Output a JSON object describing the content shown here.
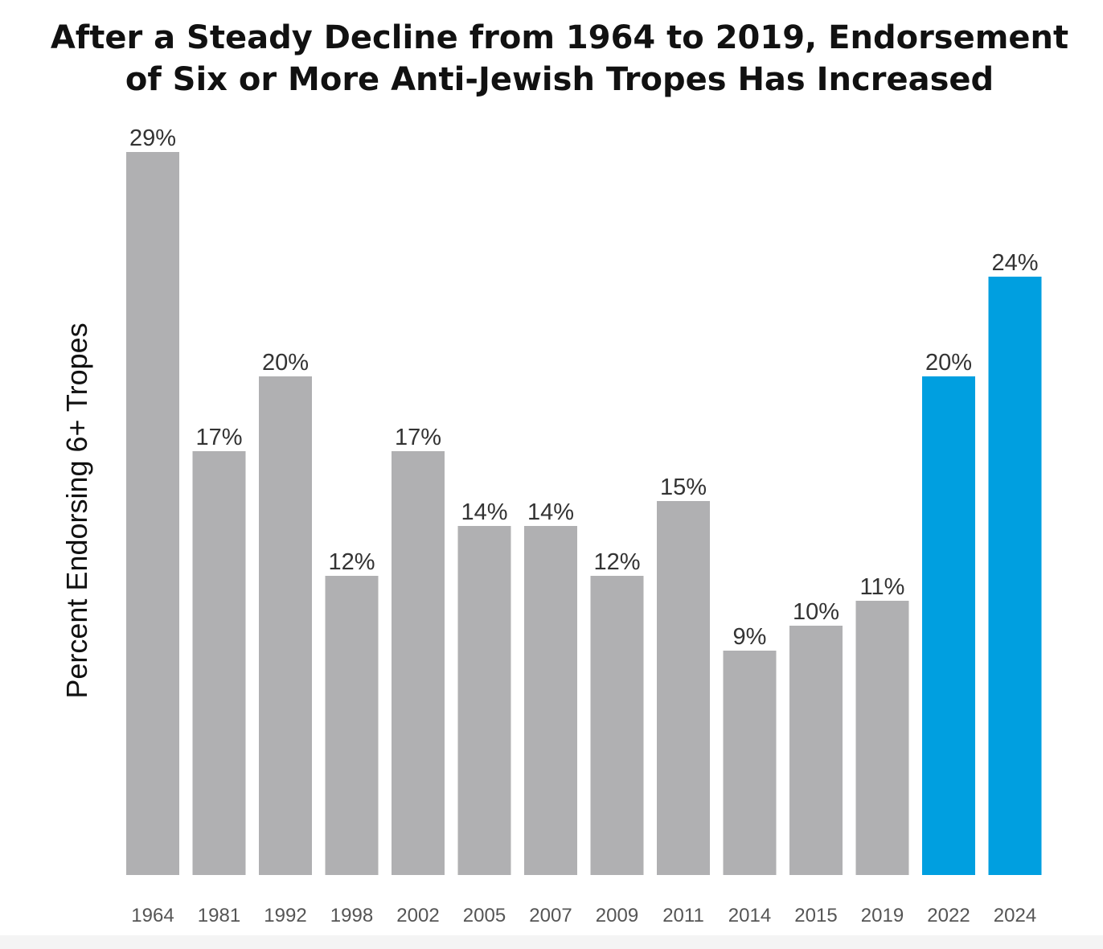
{
  "chart_data": {
    "type": "bar",
    "title_lines": [
      "After a Steady Decline from 1964 to 2019, Endorsement",
      "of Six or More Anti-Jewish Tropes Has Increased"
    ],
    "ylabel": "Percent Endorsing 6+ Tropes",
    "xlabel": "",
    "categories": [
      "1964",
      "1981",
      "1992",
      "1998",
      "2002",
      "2005",
      "2007",
      "2009",
      "2011",
      "2014",
      "2015",
      "2019",
      "2022",
      "2024"
    ],
    "values": [
      29,
      17,
      20,
      12,
      17,
      14,
      14,
      12,
      15,
      9,
      10,
      11,
      20,
      24
    ],
    "value_labels": [
      "29%",
      "17%",
      "20%",
      "12%",
      "17%",
      "14%",
      "14%",
      "12%",
      "15%",
      "9%",
      "10%",
      "11%",
      "20%",
      "24%"
    ],
    "ylim": [
      0,
      29
    ],
    "grid": false,
    "legend": "none",
    "colors": {
      "default_bar": "#b0b0b2",
      "highlight_bar": "#009fe0"
    },
    "highlight_categories": [
      "2022",
      "2024"
    ]
  }
}
